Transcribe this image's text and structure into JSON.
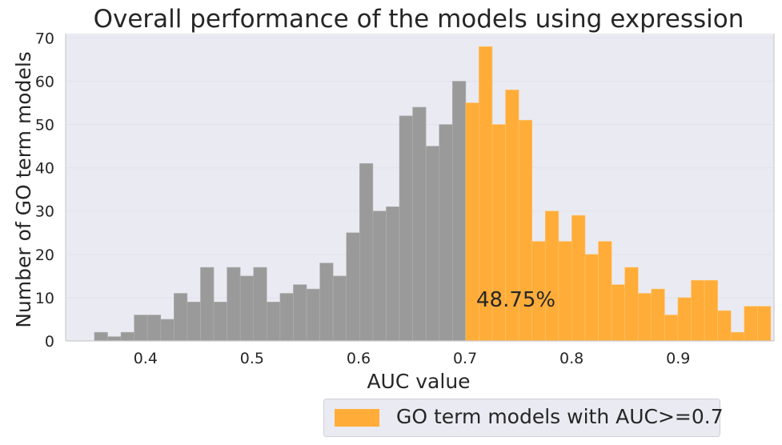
{
  "chart_data": {
    "type": "bar",
    "title": "Overall performance of the models using expression",
    "xlabel": "AUC value",
    "ylabel": "Number of GO term models",
    "xlim": [
      0.325,
      0.99
    ],
    "ylim": [
      0,
      71
    ],
    "xticks": [
      "0.4",
      "0.5",
      "0.6",
      "0.7",
      "0.8",
      "0.9"
    ],
    "yticks": [
      "0",
      "10",
      "20",
      "30",
      "40",
      "50",
      "60",
      "70"
    ],
    "bin_start": 0.352,
    "bin_width": 0.01245,
    "threshold": 0.7,
    "colors": {
      "below": "#9a9a9a",
      "above": "#ffad38",
      "background": "#eaeaf2"
    },
    "grid": true,
    "values": [
      2,
      1,
      2,
      6,
      6,
      5,
      11,
      9,
      17,
      9,
      17,
      15,
      17,
      9,
      11,
      13,
      12,
      18,
      15,
      25,
      41,
      30,
      31,
      52,
      54,
      45,
      50,
      60,
      55,
      68,
      50,
      58,
      51,
      23,
      30,
      23,
      29,
      20,
      23,
      13,
      17,
      11,
      12,
      6,
      10,
      14,
      14,
      7,
      2,
      8,
      8
    ],
    "annotation": "48.75%",
    "legend": {
      "label": "GO term models with AUC>=0.7",
      "placement": "bottom-center"
    }
  }
}
